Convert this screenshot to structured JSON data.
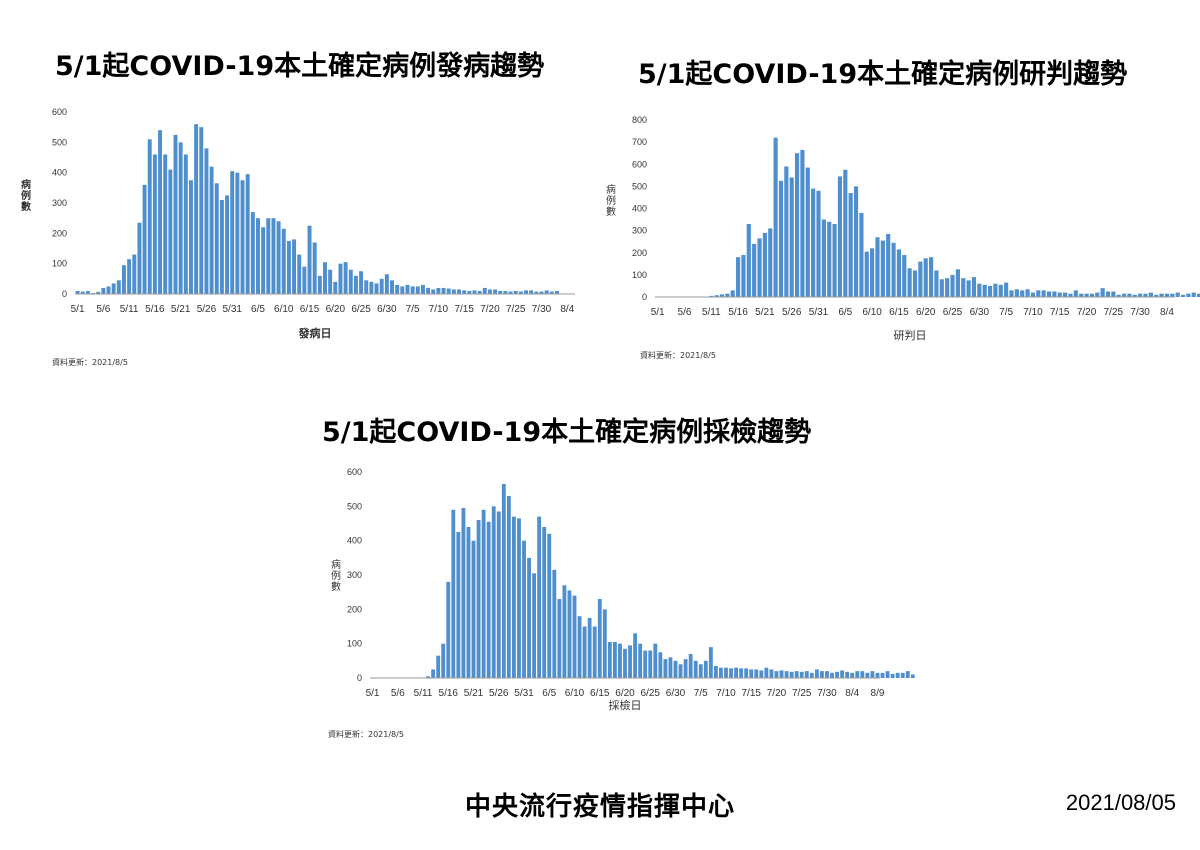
{
  "colors": {
    "bar": "#4f8fce",
    "axis": "#9a9a9a",
    "text": "#333333"
  },
  "footer": {
    "agency": "中央流行疫情指揮中心",
    "date": "2021/08/05"
  },
  "chart_data": [
    {
      "type": "bar",
      "title": "5/1起COVID-19本土確定病例發病趨勢",
      "xlabel": "發病日",
      "ylabel": "病例數",
      "source_note": "資料更新：2021/8/5",
      "ylim": [
        0,
        600
      ],
      "yticks": [
        0,
        100,
        200,
        300,
        400,
        500,
        600
      ],
      "xticks": [
        "5/1",
        "5/6",
        "5/11",
        "5/16",
        "5/21",
        "5/26",
        "5/31",
        "6/5",
        "6/10",
        "6/15",
        "6/20",
        "6/25",
        "6/30",
        "7/5",
        "7/10",
        "7/15",
        "7/20",
        "7/25",
        "7/30",
        "8/4"
      ],
      "start_date": "5/1",
      "values": [
        10,
        8,
        10,
        3,
        7,
        20,
        25,
        35,
        45,
        95,
        115,
        130,
        235,
        360,
        510,
        460,
        540,
        460,
        410,
        525,
        500,
        460,
        375,
        560,
        550,
        480,
        420,
        365,
        310,
        325,
        405,
        400,
        375,
        395,
        270,
        250,
        220,
        250,
        250,
        240,
        215,
        175,
        180,
        130,
        90,
        225,
        170,
        60,
        105,
        80,
        40,
        100,
        105,
        80,
        60,
        75,
        45,
        40,
        35,
        50,
        65,
        45,
        30,
        25,
        30,
        25,
        25,
        30,
        20,
        15,
        20,
        20,
        18,
        15,
        15,
        12,
        10,
        12,
        10,
        20,
        15,
        15,
        10,
        10,
        8,
        10,
        8,
        12,
        12,
        8,
        8,
        12,
        8,
        10
      ]
    },
    {
      "type": "bar",
      "title": "5/1起COVID-19本土確定病例研判趨勢",
      "xlabel": "研判日",
      "ylabel": "病例數",
      "source_note": "資料更新：2021/8/5",
      "ylim": [
        0,
        800
      ],
      "yticks": [
        0,
        100,
        200,
        300,
        400,
        500,
        600,
        700,
        800
      ],
      "xticks": [
        "5/1",
        "5/6",
        "5/11",
        "5/16",
        "5/21",
        "5/26",
        "5/31",
        "6/5",
        "6/10",
        "6/15",
        "6/20",
        "6/25",
        "6/30",
        "7/5",
        "7/10",
        "7/15",
        "7/20",
        "7/25",
        "7/30",
        "8/4"
      ],
      "start_date": "5/1",
      "values": [
        0,
        1,
        0,
        0,
        0,
        0,
        0,
        0,
        0,
        0,
        5,
        8,
        12,
        15,
        30,
        180,
        190,
        330,
        240,
        265,
        290,
        310,
        720,
        525,
        590,
        540,
        650,
        665,
        585,
        490,
        480,
        350,
        340,
        330,
        545,
        575,
        470,
        500,
        380,
        205,
        220,
        270,
        255,
        285,
        245,
        215,
        190,
        130,
        120,
        160,
        175,
        180,
        120,
        80,
        85,
        100,
        125,
        85,
        75,
        90,
        60,
        55,
        50,
        60,
        55,
        65,
        30,
        35,
        30,
        35,
        20,
        30,
        30,
        25,
        25,
        20,
        20,
        15,
        30,
        15,
        15,
        15,
        20,
        40,
        25,
        25,
        10,
        15,
        15,
        10,
        15,
        15,
        20,
        10,
        15,
        15,
        15,
        20,
        10,
        15,
        20,
        15
      ]
    },
    {
      "type": "bar",
      "title": "5/1起COVID-19本土確定病例採檢趨勢",
      "xlabel": "採檢日",
      "ylabel": "病例數",
      "source_note": "資料更新：2021/8/5",
      "ylim": [
        0,
        600
      ],
      "yticks": [
        0,
        100,
        200,
        300,
        400,
        500,
        600
      ],
      "xticks": [
        "5/1",
        "5/6",
        "5/11",
        "5/16",
        "5/21",
        "5/26",
        "5/31",
        "6/5",
        "6/10",
        "6/15",
        "6/20",
        "6/25",
        "6/30",
        "7/5",
        "7/10",
        "7/15",
        "7/20",
        "7/25",
        "7/30",
        "8/4",
        "8/9"
      ],
      "start_date": "5/1",
      "values": [
        0,
        0,
        0,
        0,
        0,
        0,
        0,
        0,
        0,
        0,
        0,
        5,
        25,
        65,
        100,
        280,
        490,
        425,
        495,
        440,
        400,
        460,
        490,
        455,
        500,
        485,
        565,
        530,
        470,
        465,
        400,
        350,
        305,
        470,
        440,
        420,
        315,
        230,
        270,
        255,
        240,
        180,
        150,
        175,
        150,
        230,
        200,
        105,
        105,
        100,
        85,
        95,
        130,
        100,
        80,
        80,
        100,
        75,
        55,
        60,
        50,
        40,
        55,
        70,
        50,
        40,
        50,
        90,
        35,
        30,
        30,
        28,
        30,
        28,
        28,
        25,
        25,
        22,
        30,
        25,
        20,
        22,
        20,
        18,
        20,
        18,
        20,
        15,
        25,
        20,
        20,
        15,
        18,
        22,
        18,
        15,
        20,
        20,
        15,
        20,
        15,
        15,
        20,
        12,
        15,
        15,
        20,
        10
      ]
    }
  ]
}
